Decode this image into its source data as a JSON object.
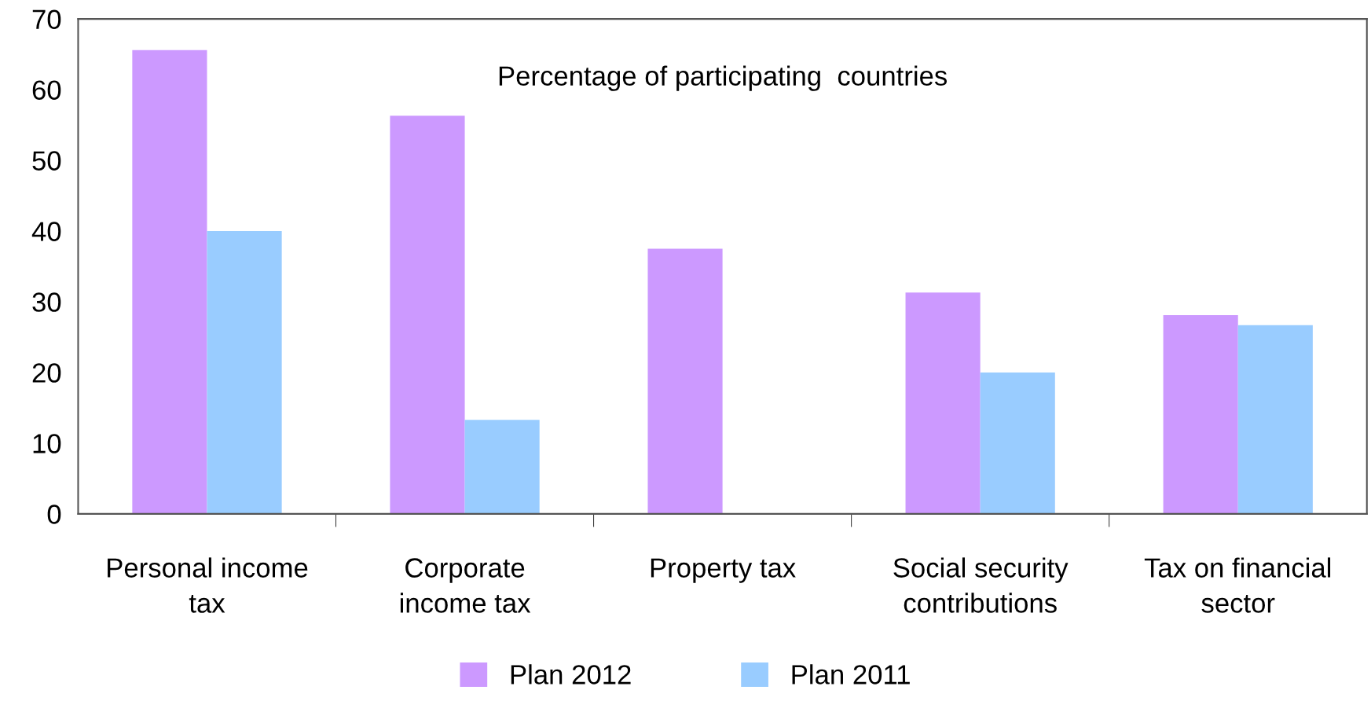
{
  "chart_data": {
    "type": "bar",
    "title": "Percentage of participating  countries",
    "categories": [
      "Personal income\ntax",
      "Corporate\nincome tax",
      "Property tax",
      "Social security\ncontributions",
      "Tax on financial\nsector"
    ],
    "series": [
      {
        "name": "Plan 2012",
        "color": "#cc99ff",
        "values": [
          65.6,
          56.3,
          37.5,
          31.3,
          28.1
        ]
      },
      {
        "name": "Plan 2011",
        "color": "#99ccff",
        "values": [
          40,
          13.3,
          0,
          20,
          26.7
        ]
      }
    ],
    "ylim": [
      0,
      70
    ],
    "yticks": [
      0,
      10,
      20,
      30,
      40,
      50,
      60,
      70
    ],
    "grid": false,
    "legend": "bottom"
  }
}
